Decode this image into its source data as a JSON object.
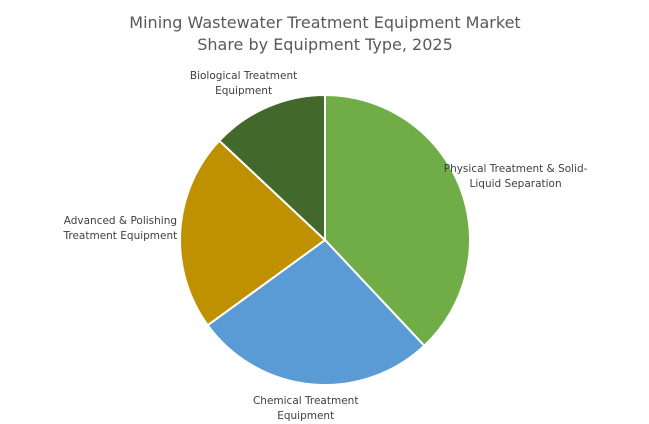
{
  "chart_data": {
    "type": "pie",
    "title": "Mining Wastewater Treatment Equipment Market Share by Equipment Type, 2025",
    "categories": [
      "Physical Treatment & Solid-Liquid Separation",
      "Chemical Treatment Equipment",
      "Advanced & Polishing Treatment Equipment",
      "Biological Treatment Equipment"
    ],
    "values": [
      38,
      27,
      22,
      13
    ],
    "colors": [
      "#70ad47",
      "#5b9bd5",
      "#bf9000",
      "#43682b"
    ]
  }
}
